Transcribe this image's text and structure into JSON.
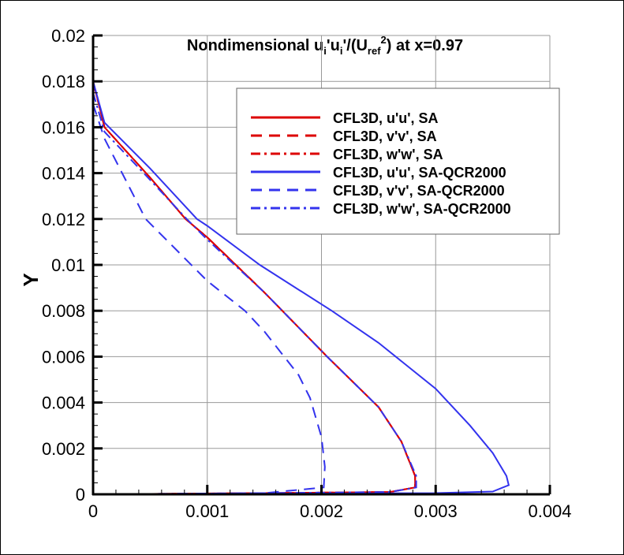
{
  "chart_data": {
    "type": "line",
    "title_parts": {
      "a": "Nondimensional u",
      "sub1": "i",
      "b": "'u",
      "sub2": "i",
      "c": "'/(U",
      "sub3": "ref",
      "sup": "2",
      "d": ") at x=0.97"
    },
    "xlabel": "",
    "ylabel": "Y",
    "xlim": [
      0,
      0.004
    ],
    "ylim": [
      0,
      0.02
    ],
    "xticks": [
      "0",
      "0.001",
      "0.002",
      "0.003",
      "0.004"
    ],
    "yticks": [
      "0",
      "0.002",
      "0.004",
      "0.006",
      "0.008",
      "0.01",
      "0.012",
      "0.014",
      "0.016",
      "0.018",
      "0.02"
    ],
    "grid": true,
    "legend_position": "top-right",
    "series": [
      {
        "name": "CFL3D, u'u', SA",
        "color": "#dd0000",
        "dash": "solid",
        "points": [
          [
            0,
            0.018
          ],
          [
            0.0001,
            0.016
          ],
          [
            0.0005,
            0.0138
          ],
          [
            0.00081,
            0.012
          ],
          [
            0.001,
            0.0112
          ],
          [
            0.0015,
            0.0088
          ],
          [
            0.00205,
            0.006
          ],
          [
            0.0025,
            0.0038
          ],
          [
            0.0027,
            0.0023
          ],
          [
            0.00282,
            0.0008
          ],
          [
            0.00282,
            0.0003
          ],
          [
            0.0026,
            0.0001
          ],
          [
            0.0015,
            5e-05
          ],
          [
            0,
            0
          ]
        ]
      },
      {
        "name": "CFL3D, v'v', SA",
        "color": "#dd0000",
        "dash": "dashed",
        "points": [
          [
            0,
            0.018
          ],
          [
            0.0001,
            0.016
          ],
          [
            0.0005,
            0.0138
          ],
          [
            0.00081,
            0.012
          ],
          [
            0.001,
            0.0112
          ],
          [
            0.0015,
            0.0088
          ],
          [
            0.00205,
            0.006
          ],
          [
            0.0025,
            0.0038
          ],
          [
            0.0027,
            0.0023
          ],
          [
            0.00282,
            0.0008
          ],
          [
            0.00282,
            0.0003
          ],
          [
            0.0026,
            0.0001
          ],
          [
            0.0015,
            5e-05
          ],
          [
            0,
            0
          ]
        ]
      },
      {
        "name": "CFL3D, w'w', SA",
        "color": "#dd0000",
        "dash": "dashdot",
        "points": [
          [
            0,
            0.018
          ],
          [
            0.0001,
            0.016
          ],
          [
            0.0005,
            0.0138
          ],
          [
            0.00081,
            0.012
          ],
          [
            0.001,
            0.0112
          ],
          [
            0.0015,
            0.0088
          ],
          [
            0.00205,
            0.006
          ],
          [
            0.0025,
            0.0038
          ],
          [
            0.0027,
            0.0023
          ],
          [
            0.00282,
            0.0008
          ],
          [
            0.00282,
            0.0003
          ],
          [
            0.0026,
            0.0001
          ],
          [
            0.0015,
            5e-05
          ],
          [
            0,
            0
          ]
        ]
      },
      {
        "name": "CFL3D, u'u', SA-QCR2000",
        "color": "#3333ee",
        "dash": "solid",
        "points": [
          [
            0,
            0.018
          ],
          [
            0.0001,
            0.0162
          ],
          [
            0.0005,
            0.0142
          ],
          [
            0.00091,
            0.012
          ],
          [
            0.001,
            0.0117
          ],
          [
            0.00146,
            0.01
          ],
          [
            0.00209,
            0.008
          ],
          [
            0.0025,
            0.0066
          ],
          [
            0.003,
            0.0046
          ],
          [
            0.0033,
            0.003
          ],
          [
            0.0035,
            0.0018
          ],
          [
            0.00362,
            0.0008
          ],
          [
            0.00364,
            0.0004
          ],
          [
            0.0035,
            0.00012
          ],
          [
            0.003,
            5e-05
          ],
          [
            0,
            0
          ]
        ]
      },
      {
        "name": "CFL3D, v'v', SA-QCR2000",
        "color": "#3333ee",
        "dash": "dashed",
        "points": [
          [
            0,
            0.017
          ],
          [
            0.0001,
            0.0155
          ],
          [
            0.00046,
            0.012
          ],
          [
            0.001,
            0.0093
          ],
          [
            0.00133,
            0.008
          ],
          [
            0.0015,
            0.0071
          ],
          [
            0.0018,
            0.0052
          ],
          [
            0.0019,
            0.0042
          ],
          [
            0.002,
            0.0025
          ],
          [
            0.00203,
            0.0012
          ],
          [
            0.00202,
            0.0003
          ],
          [
            0.0015,
            5e-05
          ],
          [
            0,
            0
          ]
        ]
      },
      {
        "name": "CFL3D, w'w', SA-QCR2000",
        "color": "#3333ee",
        "dash": "dashdot",
        "points": [
          [
            0,
            0.0175
          ],
          [
            0.0001,
            0.0158
          ],
          [
            0.0005,
            0.0137
          ],
          [
            0.00082,
            0.012
          ],
          [
            0.001,
            0.0111
          ],
          [
            0.0015,
            0.0088
          ],
          [
            0.00205,
            0.006
          ],
          [
            0.0025,
            0.0038
          ],
          [
            0.0027,
            0.0023
          ],
          [
            0.00283,
            0.0008
          ],
          [
            0.00283,
            0.0003
          ],
          [
            0.0026,
            0.0001
          ],
          [
            0.0015,
            5e-05
          ],
          [
            0,
            0
          ]
        ]
      }
    ]
  }
}
